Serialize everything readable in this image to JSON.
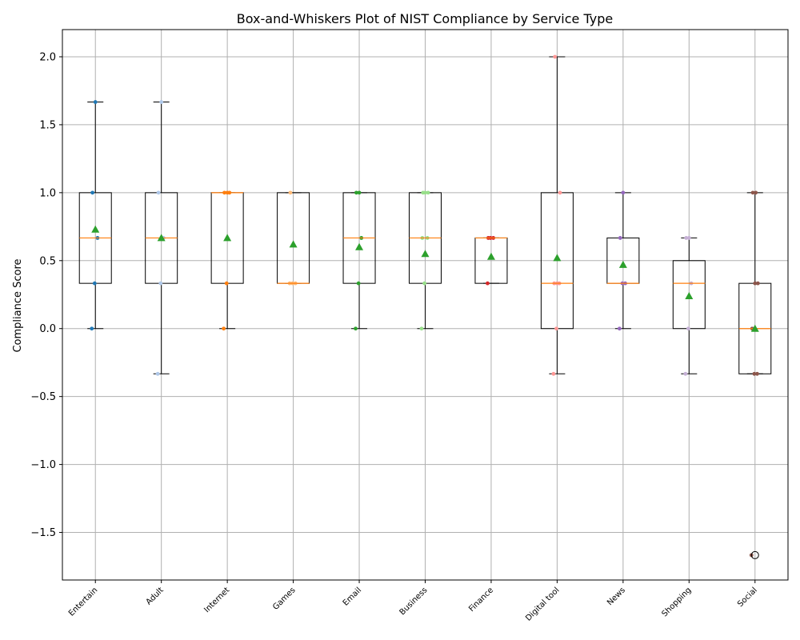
{
  "chart_data": {
    "type": "box",
    "title": "Box-and-Whiskers Plot of NIST Compliance by Service Type",
    "xlabel": "",
    "ylabel": "Compliance Score",
    "ylim": [
      -1.85,
      2.2
    ],
    "yticks": [
      -1.5,
      -1.0,
      -0.5,
      0.0,
      0.5,
      1.0,
      1.5,
      2.0
    ],
    "ytick_labels": [
      "−1.5",
      "−1.0",
      "−0.5",
      "0.0",
      "0.5",
      "1.0",
      "1.5",
      "2.0"
    ],
    "grid": true,
    "colors": {
      "median": "#ff7f0e",
      "mean_marker": "#2ca02c",
      "box": "#000000",
      "grid": "#b0b0b0"
    },
    "categories": [
      "Entertain",
      "Adult",
      "Internet",
      "Games",
      "Email",
      "Business",
      "Finance",
      "Digital tool",
      "News",
      "Shopping",
      "Social"
    ],
    "boxes": [
      {
        "category": "Entertain",
        "whisker_low": 0.0,
        "q1": 0.333,
        "median": 0.667,
        "q3": 1.0,
        "whisker_high": 1.667,
        "mean": 0.73,
        "fliers": [],
        "point_color": "#1f77b4",
        "points": [
          0.0,
          0.333,
          0.667,
          1.0,
          1.667
        ]
      },
      {
        "category": "Adult",
        "whisker_low": -0.333,
        "q1": 0.333,
        "median": 0.667,
        "q3": 1.0,
        "whisker_high": 1.667,
        "mean": 0.667,
        "fliers": [],
        "point_color": "#aec7e8",
        "points": [
          -0.333,
          0.333,
          0.667,
          1.0,
          1.667
        ]
      },
      {
        "category": "Internet",
        "whisker_low": 0.0,
        "q1": 0.333,
        "median": 1.0,
        "q3": 1.0,
        "whisker_high": 1.0,
        "mean": 0.667,
        "fliers": [],
        "point_color": "#ff7f0e",
        "points": [
          0.0,
          0.333,
          1.0,
          1.0,
          1.0
        ]
      },
      {
        "category": "Games",
        "whisker_low": 0.333,
        "q1": 0.333,
        "median": 0.333,
        "q3": 1.0,
        "whisker_high": 1.0,
        "mean": 0.62,
        "fliers": [],
        "point_color": "#ffbb78",
        "points": [
          0.333,
          0.333,
          0.333,
          1.0
        ]
      },
      {
        "category": "Email",
        "whisker_low": 0.0,
        "q1": 0.333,
        "median": 0.667,
        "q3": 1.0,
        "whisker_high": 1.0,
        "mean": 0.6,
        "fliers": [],
        "point_color": "#2ca02c",
        "points": [
          0.0,
          0.333,
          0.667,
          1.0,
          1.0
        ]
      },
      {
        "category": "Business",
        "whisker_low": 0.0,
        "q1": 0.333,
        "median": 0.667,
        "q3": 1.0,
        "whisker_high": 1.0,
        "mean": 0.55,
        "fliers": [],
        "point_color": "#98df8a",
        "points": [
          0.0,
          0.333,
          0.667,
          0.667,
          1.0,
          1.0,
          1.0
        ]
      },
      {
        "category": "Finance",
        "whisker_low": 0.333,
        "q1": 0.333,
        "median": 0.667,
        "q3": 0.667,
        "whisker_high": 0.667,
        "mean": 0.53,
        "fliers": [],
        "point_color": "#d62728",
        "points": [
          0.333,
          0.667,
          0.667,
          0.667
        ]
      },
      {
        "category": "Digital tool",
        "whisker_low": -0.333,
        "q1": 0.0,
        "median": 0.333,
        "q3": 1.0,
        "whisker_high": 2.0,
        "mean": 0.52,
        "fliers": [],
        "point_color": "#ff9896",
        "points": [
          -0.333,
          0.0,
          0.333,
          0.333,
          0.333,
          1.0,
          2.0
        ]
      },
      {
        "category": "News",
        "whisker_low": 0.0,
        "q1": 0.333,
        "median": 0.333,
        "q3": 0.667,
        "whisker_high": 1.0,
        "mean": 0.47,
        "fliers": [],
        "point_color": "#9467bd",
        "points": [
          0.0,
          0.333,
          0.333,
          0.667,
          1.0
        ]
      },
      {
        "category": "Shopping",
        "whisker_low": -0.333,
        "q1": 0.0,
        "median": 0.333,
        "q3": 0.5,
        "whisker_high": 0.667,
        "mean": 0.24,
        "fliers": [],
        "point_color": "#c5b0d5",
        "points": [
          -0.333,
          0.0,
          0.333,
          0.667,
          0.667
        ]
      },
      {
        "category": "Social",
        "whisker_low": -0.333,
        "q1": -0.333,
        "median": 0.0,
        "q3": 0.333,
        "whisker_high": 1.0,
        "mean": 0.0,
        "fliers": [
          -1.667
        ],
        "point_color": "#8c564b",
        "points": [
          -1.667,
          -0.333,
          -0.333,
          0.0,
          0.333,
          0.333,
          1.0,
          1.0
        ]
      }
    ]
  }
}
